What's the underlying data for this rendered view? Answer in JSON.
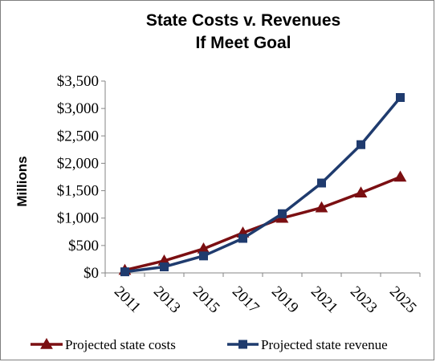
{
  "chart_data": {
    "type": "line",
    "title": "State Costs v. Revenues",
    "subtitle": "If Meet Goal",
    "xlabel": "",
    "ylabel": "Millions",
    "x": [
      "2011",
      "2013",
      "2015",
      "2017",
      "2019",
      "2021",
      "2023",
      "2025"
    ],
    "ylim": [
      0,
      3500
    ],
    "yticks": [
      0,
      500,
      1000,
      1500,
      2000,
      2500,
      3000,
      3500
    ],
    "ytick_labels": [
      "$0",
      "$500",
      "$1,000",
      "$1,500",
      "$2,000",
      "$2,500",
      "$3,000",
      "$3,500"
    ],
    "grid": false,
    "legend_position": "bottom",
    "series": [
      {
        "name": "Projected state costs",
        "color": "#7b0f12",
        "marker": "triangle",
        "values": [
          50,
          220,
          440,
          730,
          1000,
          1190,
          1460,
          1750
        ]
      },
      {
        "name": "Projected state revenue",
        "color": "#1f3b6e",
        "marker": "square",
        "values": [
          20,
          110,
          310,
          630,
          1080,
          1640,
          2340,
          3200
        ]
      }
    ]
  }
}
